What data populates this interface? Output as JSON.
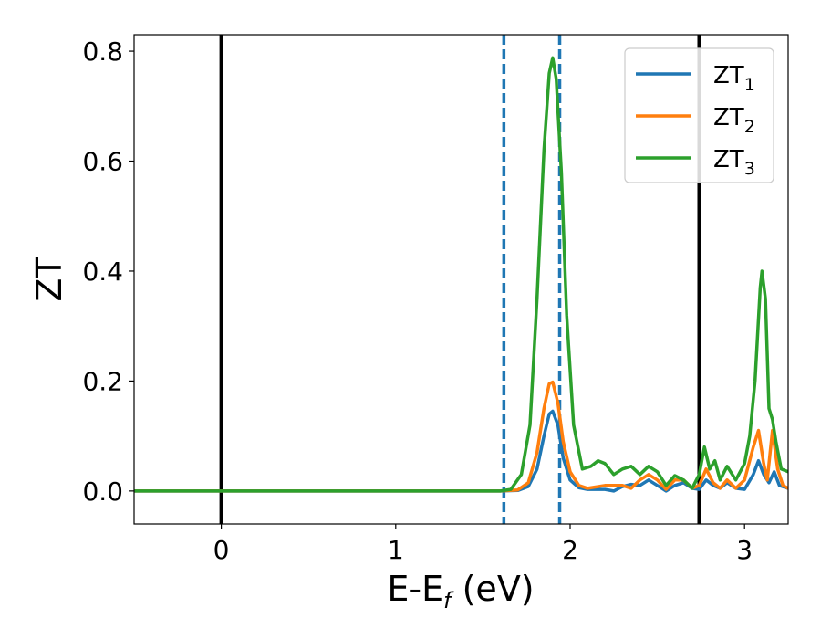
{
  "chart_data": {
    "type": "line",
    "xlabel_main": "E-E",
    "xlabel_sub": "f",
    "xlabel_unit": " (eV)",
    "ylabel": "ZT",
    "xlim": [
      -0.5,
      3.25
    ],
    "ylim": [
      -0.06,
      0.83
    ],
    "xticks": [
      0,
      1,
      2,
      3
    ],
    "yticks": [
      0.0,
      0.2,
      0.4,
      0.6,
      0.8
    ],
    "xtick_labels": [
      "0",
      "1",
      "2",
      "3"
    ],
    "ytick_labels": [
      "0.0",
      "0.2",
      "0.4",
      "0.6",
      "0.8"
    ],
    "vlines": [
      {
        "x": 0.0,
        "style": "solid",
        "color": "#000000"
      },
      {
        "x": 2.74,
        "style": "solid",
        "color": "#000000"
      },
      {
        "x": 1.62,
        "style": "dashed",
        "color": "#1f77b4"
      },
      {
        "x": 1.94,
        "style": "dashed",
        "color": "#1f77b4"
      }
    ],
    "legend_position": "top-right",
    "series": [
      {
        "name": "ZT",
        "subscript": "1",
        "color": "#1f77b4",
        "points": [
          [
            -0.5,
            0
          ],
          [
            1.6,
            0
          ],
          [
            1.7,
            0.001
          ],
          [
            1.76,
            0.008
          ],
          [
            1.81,
            0.04
          ],
          [
            1.85,
            0.1
          ],
          [
            1.88,
            0.14
          ],
          [
            1.9,
            0.145
          ],
          [
            1.93,
            0.12
          ],
          [
            1.96,
            0.06
          ],
          [
            2.0,
            0.02
          ],
          [
            2.05,
            0.006
          ],
          [
            2.1,
            0.003
          ],
          [
            2.2,
            0.003
          ],
          [
            2.25,
            0.0
          ],
          [
            2.3,
            0.008
          ],
          [
            2.35,
            0.012
          ],
          [
            2.4,
            0.01
          ],
          [
            2.45,
            0.02
          ],
          [
            2.5,
            0.01
          ],
          [
            2.55,
            0.0
          ],
          [
            2.6,
            0.01
          ],
          [
            2.65,
            0.015
          ],
          [
            2.7,
            0.005
          ],
          [
            2.74,
            0.003
          ],
          [
            2.78,
            0.02
          ],
          [
            2.82,
            0.01
          ],
          [
            2.86,
            0.005
          ],
          [
            2.9,
            0.015
          ],
          [
            2.95,
            0.005
          ],
          [
            3.0,
            0.003
          ],
          [
            3.05,
            0.03
          ],
          [
            3.08,
            0.055
          ],
          [
            3.11,
            0.03
          ],
          [
            3.14,
            0.015
          ],
          [
            3.17,
            0.035
          ],
          [
            3.2,
            0.01
          ],
          [
            3.25,
            0.005
          ]
        ]
      },
      {
        "name": "ZT",
        "subscript": "2",
        "color": "#ff7f0e",
        "points": [
          [
            -0.5,
            0
          ],
          [
            1.6,
            0
          ],
          [
            1.7,
            0.002
          ],
          [
            1.76,
            0.015
          ],
          [
            1.81,
            0.07
          ],
          [
            1.85,
            0.15
          ],
          [
            1.88,
            0.195
          ],
          [
            1.9,
            0.198
          ],
          [
            1.93,
            0.16
          ],
          [
            1.96,
            0.09
          ],
          [
            2.0,
            0.035
          ],
          [
            2.05,
            0.01
          ],
          [
            2.1,
            0.005
          ],
          [
            2.2,
            0.01
          ],
          [
            2.3,
            0.01
          ],
          [
            2.35,
            0.005
          ],
          [
            2.4,
            0.02
          ],
          [
            2.45,
            0.03
          ],
          [
            2.5,
            0.02
          ],
          [
            2.55,
            0.003
          ],
          [
            2.6,
            0.02
          ],
          [
            2.65,
            0.02
          ],
          [
            2.7,
            0.005
          ],
          [
            2.74,
            0.01
          ],
          [
            2.78,
            0.04
          ],
          [
            2.82,
            0.015
          ],
          [
            2.86,
            0.005
          ],
          [
            2.9,
            0.02
          ],
          [
            2.95,
            0.005
          ],
          [
            3.0,
            0.02
          ],
          [
            3.05,
            0.08
          ],
          [
            3.08,
            0.11
          ],
          [
            3.11,
            0.05
          ],
          [
            3.13,
            0.02
          ],
          [
            3.16,
            0.11
          ],
          [
            3.19,
            0.04
          ],
          [
            3.22,
            0.01
          ],
          [
            3.25,
            0.005
          ]
        ]
      },
      {
        "name": "ZT",
        "subscript": "3",
        "color": "#2ca02c",
        "points": [
          [
            -0.5,
            0
          ],
          [
            1.6,
            0
          ],
          [
            1.66,
            0.003
          ],
          [
            1.72,
            0.03
          ],
          [
            1.77,
            0.12
          ],
          [
            1.81,
            0.35
          ],
          [
            1.85,
            0.62
          ],
          [
            1.88,
            0.76
          ],
          [
            1.9,
            0.788
          ],
          [
            1.92,
            0.75
          ],
          [
            1.95,
            0.58
          ],
          [
            1.98,
            0.32
          ],
          [
            2.02,
            0.12
          ],
          [
            2.07,
            0.04
          ],
          [
            2.12,
            0.045
          ],
          [
            2.16,
            0.055
          ],
          [
            2.2,
            0.05
          ],
          [
            2.25,
            0.03
          ],
          [
            2.3,
            0.04
          ],
          [
            2.35,
            0.045
          ],
          [
            2.4,
            0.03
          ],
          [
            2.45,
            0.045
          ],
          [
            2.5,
            0.035
          ],
          [
            2.55,
            0.01
          ],
          [
            2.6,
            0.028
          ],
          [
            2.65,
            0.02
          ],
          [
            2.7,
            0.005
          ],
          [
            2.74,
            0.03
          ],
          [
            2.77,
            0.08
          ],
          [
            2.8,
            0.04
          ],
          [
            2.83,
            0.055
          ],
          [
            2.86,
            0.02
          ],
          [
            2.9,
            0.045
          ],
          [
            2.95,
            0.02
          ],
          [
            3.0,
            0.05
          ],
          [
            3.03,
            0.1
          ],
          [
            3.06,
            0.2
          ],
          [
            3.09,
            0.37
          ],
          [
            3.1,
            0.4
          ],
          [
            3.12,
            0.35
          ],
          [
            3.14,
            0.15
          ],
          [
            3.16,
            0.13
          ],
          [
            3.18,
            0.09
          ],
          [
            3.21,
            0.04
          ],
          [
            3.25,
            0.035
          ]
        ]
      }
    ]
  }
}
